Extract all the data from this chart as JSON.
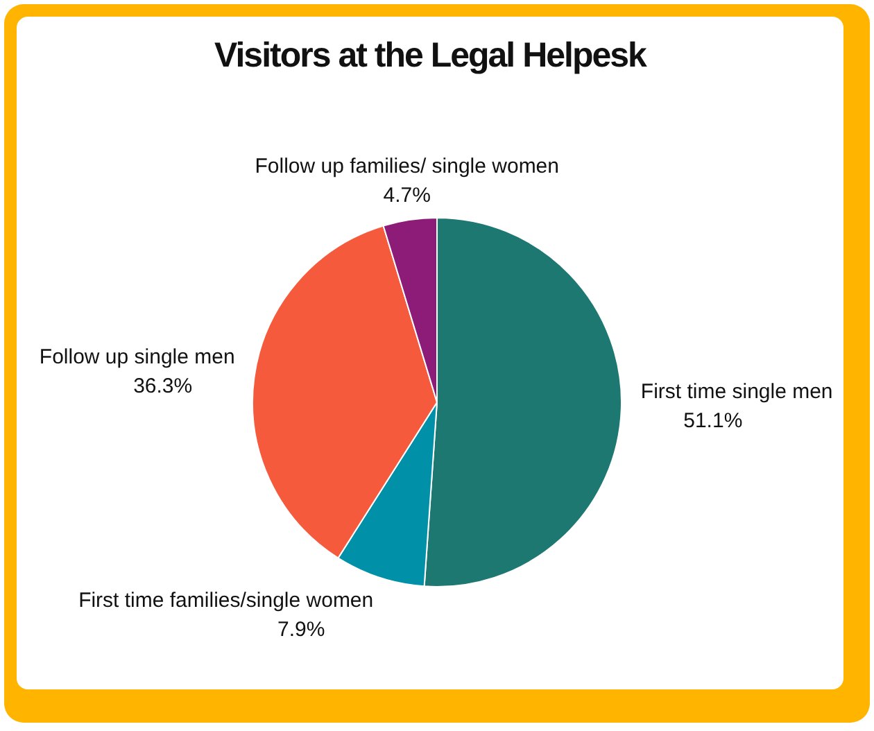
{
  "chart_data": {
    "type": "pie",
    "title": "Visitors at the Legal Helpesk",
    "categories": [
      "First time single men",
      "First time families/single women",
      "Follow up single men",
      "Follow up families/ single women"
    ],
    "values": [
      51.1,
      7.9,
      36.3,
      4.7
    ],
    "value_labels": [
      "51.1%",
      "7.9%",
      "36.3%",
      "4.7%"
    ],
    "colors": [
      "#1e7872",
      "#0090a8",
      "#f65a3c",
      "#8c1c78"
    ],
    "legend": false
  }
}
